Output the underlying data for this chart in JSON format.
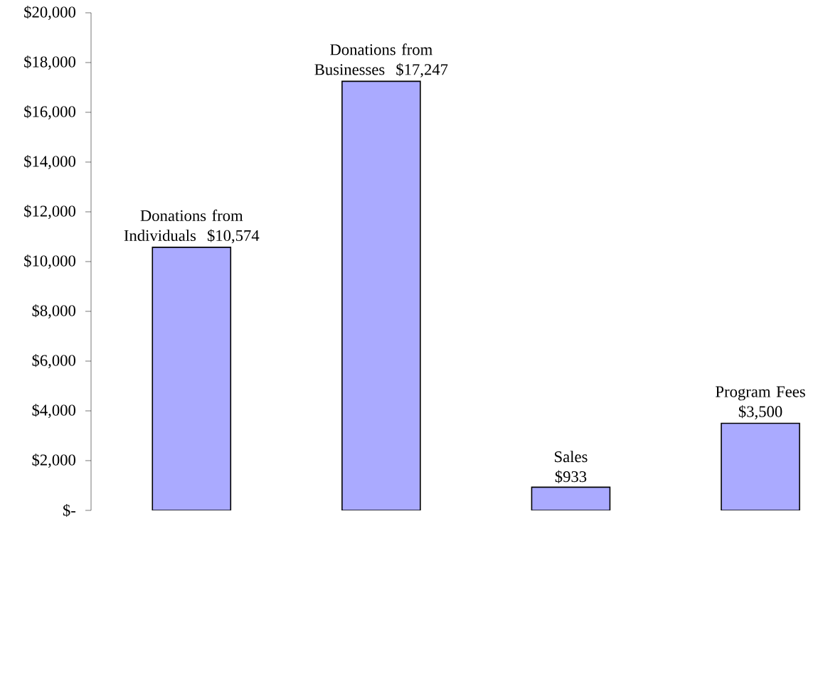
{
  "chart_data": {
    "type": "bar",
    "categories": [
      "Donations from Individuals",
      "Donations from Businesses",
      "Sales",
      "Program Fees"
    ],
    "values": [
      10574,
      17247,
      933,
      3500
    ],
    "value_labels": [
      "$10,574",
      "$17,247",
      "$933",
      "$3,500"
    ],
    "color": "#aaaaff",
    "ylim": [
      0,
      20000
    ],
    "yticks": [
      {
        "value": 0,
        "label": "$-"
      },
      {
        "value": 2000,
        "label": "$2,000"
      },
      {
        "value": 4000,
        "label": "$4,000"
      },
      {
        "value": 6000,
        "label": "$6,000"
      },
      {
        "value": 8000,
        "label": "$8,000"
      },
      {
        "value": 10000,
        "label": "$10,000"
      },
      {
        "value": 12000,
        "label": "$12,000"
      },
      {
        "value": 14000,
        "label": "$14,000"
      },
      {
        "value": 16000,
        "label": "$16,000"
      },
      {
        "value": 18000,
        "label": "$18,000"
      },
      {
        "value": 20000,
        "label": "$20,000"
      }
    ],
    "tick_labels": "y",
    "grid": false
  }
}
